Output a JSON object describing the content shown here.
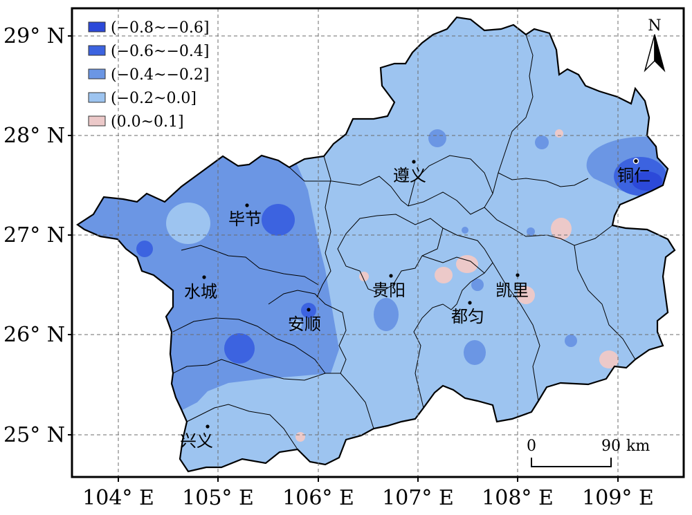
{
  "map": {
    "lat_labels": [
      "29° N",
      "28° N",
      "27° N",
      "26° N",
      "25° N"
    ],
    "lon_labels": [
      "104° E",
      "105° E",
      "106° E",
      "107° E",
      "108° E",
      "109° E"
    ],
    "legend": [
      {
        "label": "(−0.8~−0.6]",
        "color": "#2c49d9"
      },
      {
        "label": "(−0.6~−0.4]",
        "color": "#3c63e0"
      },
      {
        "label": "(−0.4~−0.2]",
        "color": "#6b96e4"
      },
      {
        "label": "(−0.2~0.0]",
        "color": "#9dc4f0"
      },
      {
        "label": "(0.0~0.1]",
        "color": "#ecc9c9"
      }
    ],
    "cities": [
      "遵义",
      "毕节",
      "铜仁",
      "水城",
      "贵阳",
      "凯里",
      "安顺",
      "都匀",
      "兴义"
    ],
    "north_label": "N",
    "scale": {
      "start": "0",
      "end": "90",
      "unit": "km"
    }
  }
}
